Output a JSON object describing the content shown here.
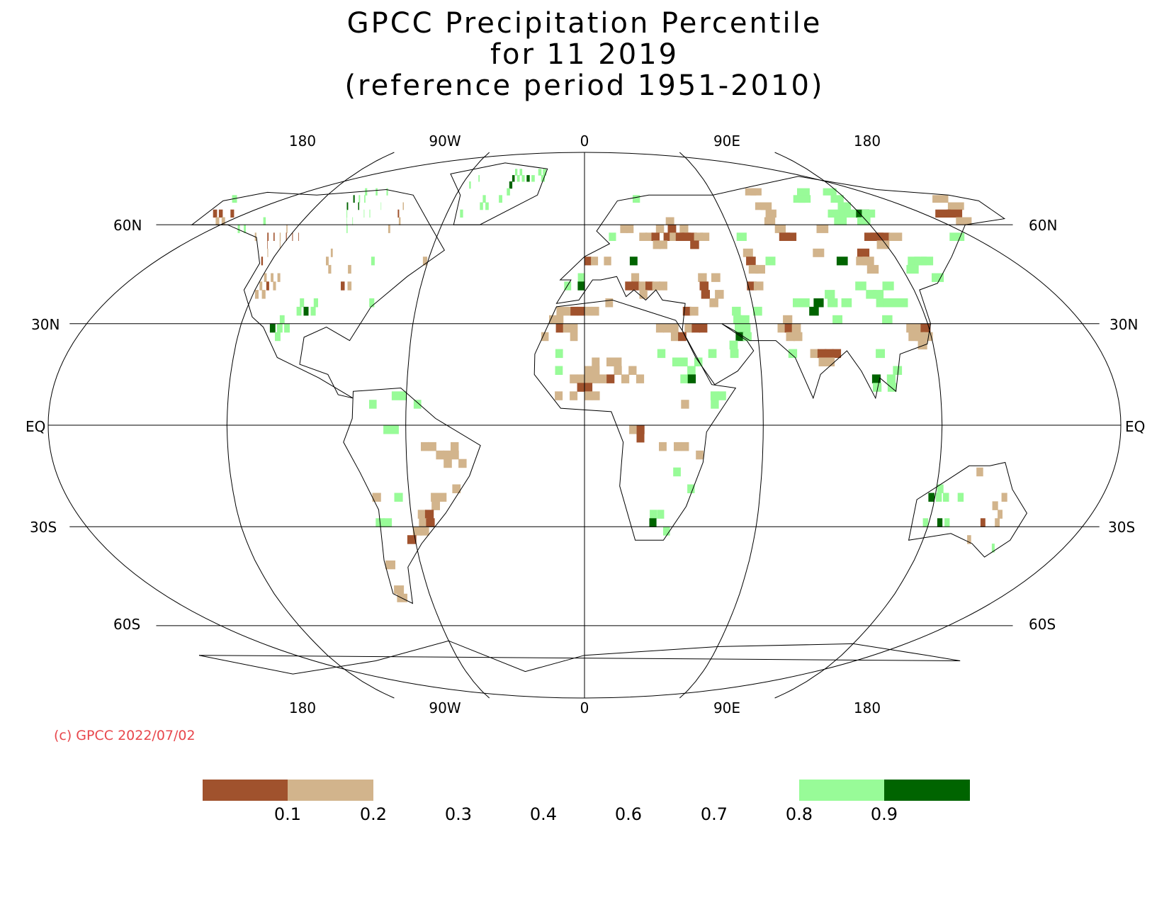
{
  "title": {
    "line1": "GPCC Precipitation Percentile",
    "line2": "for 11 2019",
    "line3": "(reference period 1951-2010)"
  },
  "axes": {
    "top_lon_labels": [
      "180",
      "90W",
      "0",
      "90E",
      "180"
    ],
    "bottom_lon_labels": [
      "180",
      "90W",
      "0",
      "90E",
      "180"
    ],
    "lat_labels": [
      "60N",
      "30N",
      "EQ",
      "30S",
      "60S"
    ]
  },
  "copyright": "(c) GPCC 2022/07/02",
  "legend": {
    "tick_labels": [
      "0.1",
      "0.2",
      "0.3",
      "0.4",
      "0.6",
      "0.7",
      "0.8",
      "0.9"
    ],
    "bins": [
      {
        "range": "< 0.1",
        "color": "#a0522d"
      },
      {
        "range": "0.1 - 0.2",
        "color": "#d2b48c"
      },
      {
        "range": "0.2 - 0.8",
        "color": "#ffffff"
      },
      {
        "range": "0.8 - 0.9",
        "color": "#98fb98"
      },
      {
        "range": "> 0.9",
        "color": "#006400"
      }
    ]
  },
  "colors": {
    "very_dry": "#a0522d",
    "dry": "#d2b48c",
    "wet": "#98fb98",
    "very_wet": "#006400",
    "grid": "#000000",
    "copyright": "#e8474c"
  }
}
